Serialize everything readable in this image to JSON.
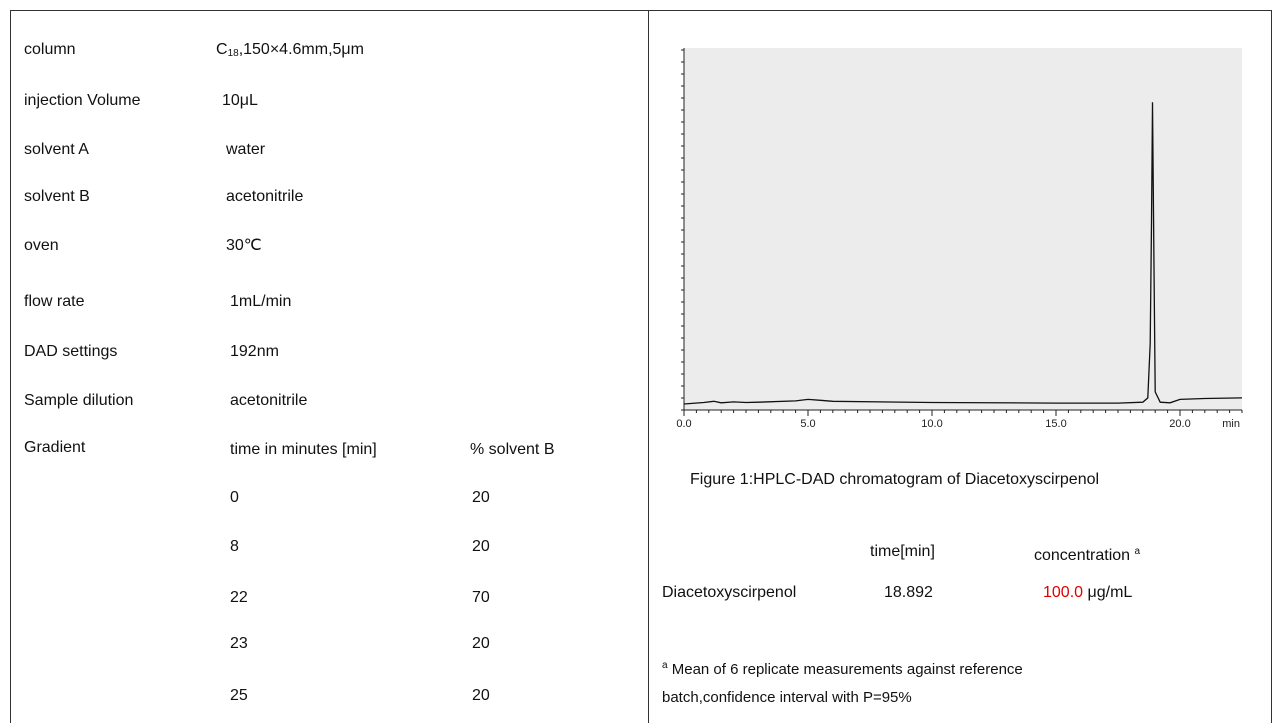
{
  "params": [
    {
      "label": "column",
      "value_pre": "C",
      "value_sub": "18",
      "value_post": ",150×4.6mm,5μm"
    },
    {
      "label": "injection Volume",
      "value": "10μL"
    },
    {
      "label": "solvent A",
      "value": "water"
    },
    {
      "label": "solvent B",
      "value": "acetonitrile"
    },
    {
      "label": "oven",
      "value": "30℃"
    },
    {
      "label": "flow rate",
      "value": "1mL/min"
    },
    {
      "label": "DAD settings",
      "value": "192nm"
    },
    {
      "label": "Sample dilution",
      "value": "acetonitrile"
    }
  ],
  "gradient": {
    "label": "Gradient",
    "col_time": "time in minutes [min]",
    "col_solvent": "% solvent B",
    "rows": [
      {
        "time": "0",
        "b": "20"
      },
      {
        "time": "8",
        "b": "20"
      },
      {
        "time": "22",
        "b": "70"
      },
      {
        "time": "23",
        "b": "20"
      },
      {
        "time": "25",
        "b": "20"
      }
    ]
  },
  "chart_data": {
    "type": "line",
    "xlabel": "min",
    "xlim": [
      0,
      22.5
    ],
    "x_ticks": [
      "0.0",
      "5.0",
      "10.0",
      "15.0",
      "20.0"
    ],
    "series": [
      {
        "x": [
          0,
          0.8,
          1.2,
          1.5,
          2.0,
          2.5,
          3.0,
          4.5,
          5.0,
          5.5,
          6.0,
          10.0,
          15.0,
          17.5,
          18.5,
          18.7,
          18.8,
          18.85,
          18.892,
          18.95,
          19.0,
          19.2,
          19.6,
          20.0,
          21.0,
          22.5
        ],
        "y": [
          0,
          0.5,
          0.9,
          0.4,
          0.7,
          0.5,
          0.6,
          1.0,
          1.5,
          1.2,
          0.9,
          0.5,
          0.3,
          0.3,
          0.6,
          2.0,
          20.0,
          60.0,
          100.0,
          45.0,
          4.0,
          0.6,
          0.4,
          1.5,
          1.8,
          2.0
        ]
      }
    ],
    "grid": false,
    "ylim": [
      -2,
      118
    ]
  },
  "figure_caption": "Figure 1:HPLC-DAD chromatogram of Diacetoxyscirpenol",
  "results": {
    "col_time": "time[min]",
    "col_conc": "concentration",
    "conc_sup": "a",
    "compound": "Diacetoxyscirpenol",
    "time": "18.892",
    "conc_value": "100.0",
    "conc_unit": "μg/mL"
  },
  "footnote": {
    "sup": "a",
    "line1": "Mean of 6 replicate measurements against reference",
    "line2": "batch,confidence interval with P=95%"
  },
  "colors": {
    "highlight": "#e00000",
    "plot_bg": "#ececec",
    "trace": "#111111"
  }
}
